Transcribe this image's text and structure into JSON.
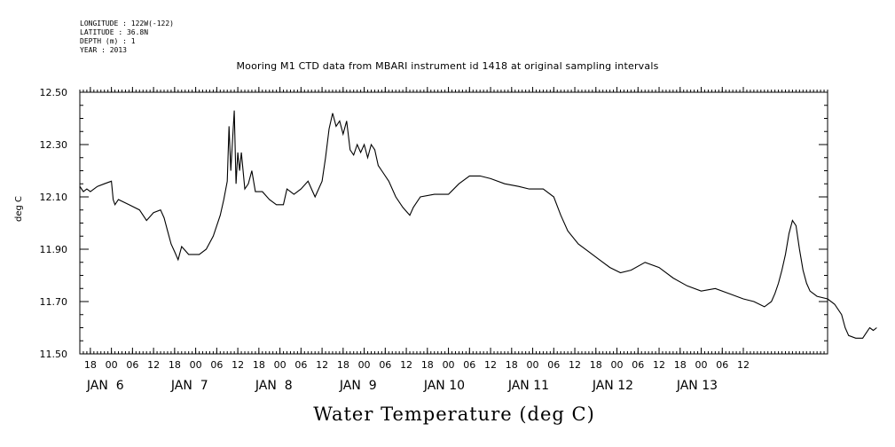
{
  "meta": {
    "lines": [
      "LONGITUDE : 122W(-122)",
      "LATITUDE : 36.8N",
      "DEPTH (m) : 1",
      "YEAR : 2013"
    ]
  },
  "chart_data": {
    "type": "line",
    "title": "Mooring M1 CTD data from MBARI instrument id 1418 at original sampling intervals",
    "xlabel": "Water Temperature (deg C)",
    "ylabel": "deg C",
    "ylim": [
      11.5,
      12.5
    ],
    "yticks": [
      "11.50",
      "11.70",
      "11.90",
      "12.10",
      "12.30",
      "12.50"
    ],
    "xlim_hours": [
      -9,
      12
    ],
    "hour_ticks": [
      "18",
      "00",
      "06",
      "12",
      "18",
      "00",
      "06",
      "12",
      "18",
      "00",
      "06",
      "12",
      "18",
      "00",
      "06",
      "12",
      "18",
      "00",
      "06",
      "12",
      "18",
      "00",
      "06",
      "12",
      "18",
      "00",
      "06",
      "12",
      "18",
      "00",
      "06",
      "12"
    ],
    "day_labels": [
      "JAN  6",
      "JAN  7",
      "JAN  8",
      "JAN  9",
      "JAN 10",
      "JAN 11",
      "JAN 12",
      "JAN 13"
    ],
    "grid": false,
    "series": [
      {
        "points": [
          [
            "2013-01-05T15:00",
            12.14
          ],
          [
            "2013-01-05T16:00",
            12.12
          ],
          [
            "2013-01-05T17:00",
            12.13
          ],
          [
            "2013-01-05T18:00",
            12.12
          ],
          [
            "2013-01-05T20:00",
            12.14
          ],
          [
            "2013-01-05T22:00",
            12.15
          ],
          [
            "2013-01-06T00:00",
            12.16
          ],
          [
            "2013-01-06T00:30",
            12.09
          ],
          [
            "2013-01-06T01:00",
            12.07
          ],
          [
            "2013-01-06T02:00",
            12.09
          ],
          [
            "2013-01-06T05:00",
            12.07
          ],
          [
            "2013-01-06T08:00",
            12.05
          ],
          [
            "2013-01-06T10:00",
            12.01
          ],
          [
            "2013-01-06T12:00",
            12.04
          ],
          [
            "2013-01-06T14:00",
            12.05
          ],
          [
            "2013-01-06T15:00",
            12.02
          ],
          [
            "2013-01-06T16:00",
            11.97
          ],
          [
            "2013-01-06T17:00",
            11.92
          ],
          [
            "2013-01-06T18:00",
            11.89
          ],
          [
            "2013-01-06T19:00",
            11.86
          ],
          [
            "2013-01-06T20:00",
            11.91
          ],
          [
            "2013-01-06T22:00",
            11.88
          ],
          [
            "2013-01-07T01:00",
            11.88
          ],
          [
            "2013-01-07T03:00",
            11.9
          ],
          [
            "2013-01-07T05:00",
            11.95
          ],
          [
            "2013-01-07T07:00",
            12.03
          ],
          [
            "2013-01-07T08:00",
            12.09
          ],
          [
            "2013-01-07T09:00",
            12.16
          ],
          [
            "2013-01-07T09:30",
            12.37
          ],
          [
            "2013-01-07T10:00",
            12.2
          ],
          [
            "2013-01-07T11:00",
            12.43
          ],
          [
            "2013-01-07T11:30",
            12.15
          ],
          [
            "2013-01-07T12:00",
            12.27
          ],
          [
            "2013-01-07T12:30",
            12.2
          ],
          [
            "2013-01-07T13:00",
            12.27
          ],
          [
            "2013-01-07T14:00",
            12.13
          ],
          [
            "2013-01-07T15:00",
            12.15
          ],
          [
            "2013-01-07T16:00",
            12.2
          ],
          [
            "2013-01-07T17:00",
            12.12
          ],
          [
            "2013-01-07T19:00",
            12.12
          ],
          [
            "2013-01-07T21:00",
            12.09
          ],
          [
            "2013-01-07T23:00",
            12.07
          ],
          [
            "2013-01-08T01:00",
            12.07
          ],
          [
            "2013-01-08T02:00",
            12.13
          ],
          [
            "2013-01-08T04:00",
            12.11
          ],
          [
            "2013-01-08T06:00",
            12.13
          ],
          [
            "2013-01-08T08:00",
            12.16
          ],
          [
            "2013-01-08T09:00",
            12.13
          ],
          [
            "2013-01-08T10:00",
            12.1
          ],
          [
            "2013-01-08T12:00",
            12.16
          ],
          [
            "2013-01-08T13:00",
            12.25
          ],
          [
            "2013-01-08T14:00",
            12.36
          ],
          [
            "2013-01-08T15:00",
            12.42
          ],
          [
            "2013-01-08T16:00",
            12.37
          ],
          [
            "2013-01-08T17:00",
            12.39
          ],
          [
            "2013-01-08T18:00",
            12.34
          ],
          [
            "2013-01-08T19:00",
            12.39
          ],
          [
            "2013-01-08T20:00",
            12.28
          ],
          [
            "2013-01-08T21:00",
            12.26
          ],
          [
            "2013-01-08T22:00",
            12.3
          ],
          [
            "2013-01-08T23:00",
            12.27
          ],
          [
            "2013-01-09T00:00",
            12.3
          ],
          [
            "2013-01-09T01:00",
            12.25
          ],
          [
            "2013-01-09T02:00",
            12.3
          ],
          [
            "2013-01-09T03:00",
            12.28
          ],
          [
            "2013-01-09T04:00",
            12.22
          ],
          [
            "2013-01-09T05:00",
            12.2
          ],
          [
            "2013-01-09T07:00",
            12.16
          ],
          [
            "2013-01-09T09:00",
            12.1
          ],
          [
            "2013-01-09T11:00",
            12.06
          ],
          [
            "2013-01-09T13:00",
            12.03
          ],
          [
            "2013-01-09T14:00",
            12.06
          ],
          [
            "2013-01-09T16:00",
            12.1
          ],
          [
            "2013-01-09T20:00",
            12.11
          ],
          [
            "2013-01-10T00:00",
            12.11
          ],
          [
            "2013-01-10T03:00",
            12.15
          ],
          [
            "2013-01-10T06:00",
            12.18
          ],
          [
            "2013-01-10T09:00",
            12.18
          ],
          [
            "2013-01-10T12:00",
            12.17
          ],
          [
            "2013-01-10T16:00",
            12.15
          ],
          [
            "2013-01-10T20:00",
            12.14
          ],
          [
            "2013-01-10T23:00",
            12.13
          ],
          [
            "2013-01-11T03:00",
            12.13
          ],
          [
            "2013-01-11T06:00",
            12.1
          ],
          [
            "2013-01-11T08:00",
            12.03
          ],
          [
            "2013-01-11T10:00",
            11.97
          ],
          [
            "2013-01-11T13:00",
            11.92
          ],
          [
            "2013-01-11T16:00",
            11.89
          ],
          [
            "2013-01-11T19:00",
            11.86
          ],
          [
            "2013-01-11T22:00",
            11.83
          ],
          [
            "2013-01-12T01:00",
            11.81
          ],
          [
            "2013-01-12T04:00",
            11.82
          ],
          [
            "2013-01-12T08:00",
            11.85
          ],
          [
            "2013-01-12T12:00",
            11.83
          ],
          [
            "2013-01-12T16:00",
            11.79
          ],
          [
            "2013-01-12T20:00",
            11.76
          ],
          [
            "2013-01-13T00:00",
            11.74
          ],
          [
            "2013-01-13T04:00",
            11.75
          ],
          [
            "2013-01-13T08:00",
            11.73
          ],
          [
            "2013-01-13T12:00",
            11.71
          ],
          [
            "2013-01-13T15:00",
            11.7
          ],
          [
            "2013-01-13T18:00",
            11.68
          ],
          [
            "2013-01-13T20:00",
            11.7
          ],
          [
            "2013-01-13T21:00",
            11.73
          ],
          [
            "2013-01-13T22:00",
            11.77
          ],
          [
            "2013-01-13T23:00",
            11.82
          ],
          [
            "2013-01-14T00:00",
            11.88
          ],
          [
            "2013-01-14T01:00",
            11.96
          ],
          [
            "2013-01-14T02:00",
            12.01
          ],
          [
            "2013-01-14T03:00",
            11.99
          ],
          [
            "2013-01-14T04:00",
            11.9
          ],
          [
            "2013-01-14T05:00",
            11.82
          ],
          [
            "2013-01-14T06:00",
            11.77
          ],
          [
            "2013-01-14T07:00",
            11.74
          ],
          [
            "2013-01-14T09:00",
            11.72
          ],
          [
            "2013-01-14T12:00",
            11.71
          ],
          [
            "2013-01-14T14:00",
            11.69
          ],
          [
            "2013-01-14T16:00",
            11.65
          ],
          [
            "2013-01-14T17:00",
            11.6
          ],
          [
            "2013-01-14T18:00",
            11.57
          ],
          [
            "2013-01-14T20:00",
            11.56
          ],
          [
            "2013-01-14T22:00",
            11.56
          ],
          [
            "2013-01-14T23:00",
            11.58
          ],
          [
            "2013-01-15T00:00",
            11.6
          ],
          [
            "2013-01-15T01:00",
            11.59
          ],
          [
            "2013-01-15T02:00",
            11.6
          ]
        ]
      }
    ]
  }
}
